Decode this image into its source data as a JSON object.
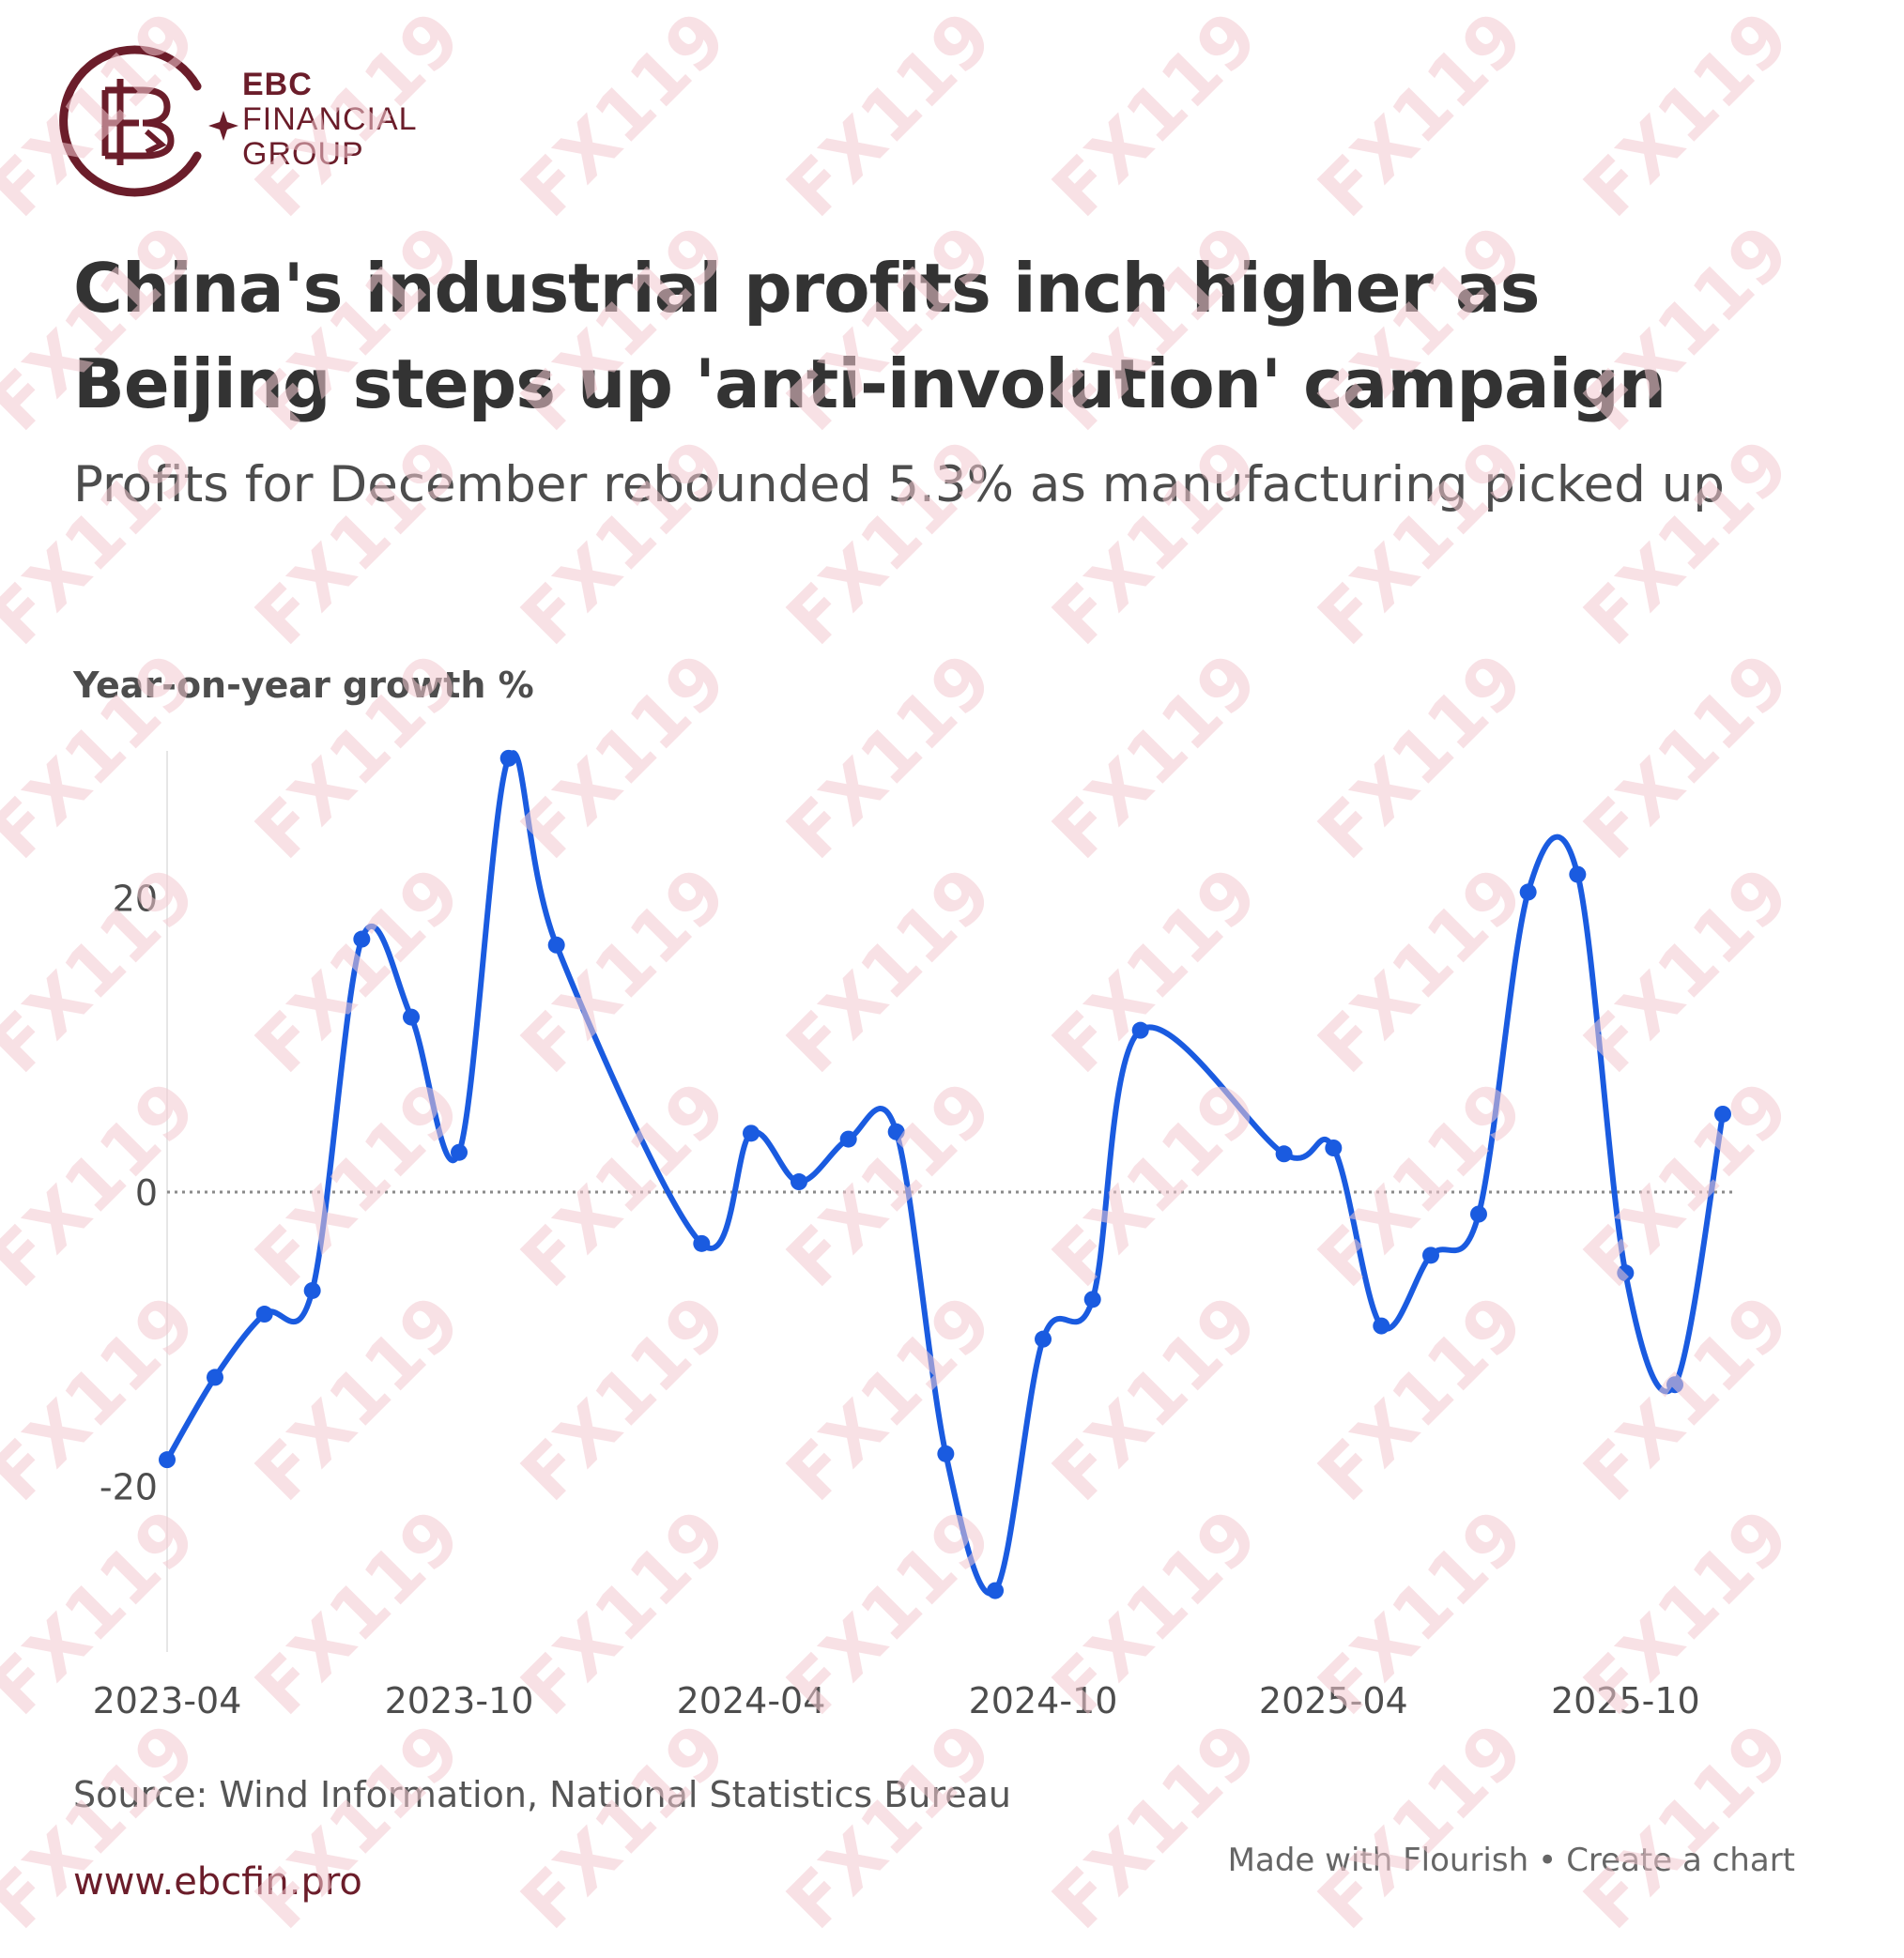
{
  "brand": {
    "name_line1": "EBC",
    "name_line2": "FINANCIAL",
    "name_line3": "GROUP",
    "url": "www.ebcfin.pro",
    "color": "#6b1d2a"
  },
  "watermark": {
    "text": "FX119",
    "color": "#f2c9cf"
  },
  "chart_data": {
    "type": "line",
    "title": "China's industrial profits inch higher as Beijing steps up 'anti-involution' campaign",
    "subtitle": "Profits for December rebounded 5.3% as manufacturing picked up",
    "ylabel": "Year-on-year growth %",
    "source": "Source: Wind Information, National Statistics Bureau",
    "x": [
      "2023-04",
      "2023-05",
      "2023-06",
      "2023-07",
      "2023-08",
      "2023-09",
      "2023-10",
      "2023-11",
      "2023-12",
      "2024-03",
      "2024-04",
      "2024-05",
      "2024-06",
      "2024-07",
      "2024-08",
      "2024-09",
      "2024-10",
      "2024-11",
      "2024-12",
      "2025-03",
      "2025-04",
      "2025-05",
      "2025-06",
      "2025-07",
      "2025-08",
      "2025-09",
      "2025-10",
      "2025-11",
      "2025-12"
    ],
    "values": [
      -18.2,
      -12.6,
      -8.3,
      -6.7,
      17.2,
      11.9,
      2.7,
      29.5,
      16.8,
      -3.5,
      4.0,
      0.7,
      3.6,
      4.1,
      -17.8,
      -27.1,
      -10.0,
      -7.3,
      11.0,
      2.6,
      3.0,
      -9.1,
      -4.3,
      -1.5,
      20.4,
      21.6,
      -5.5,
      -13.1,
      5.3
    ],
    "xticks": [
      "2023-04",
      "2023-10",
      "2024-04",
      "2024-10",
      "2025-04",
      "2025-10"
    ],
    "yticks": [
      -20,
      0,
      20
    ],
    "ylim": [
      -30,
      30
    ],
    "zero_line": "dotted",
    "line_color": "#1a5be0",
    "grid": false,
    "legend": "none"
  },
  "footer": {
    "made_with": "Made with Flourish",
    "separator": "•",
    "create": "Create a chart"
  }
}
